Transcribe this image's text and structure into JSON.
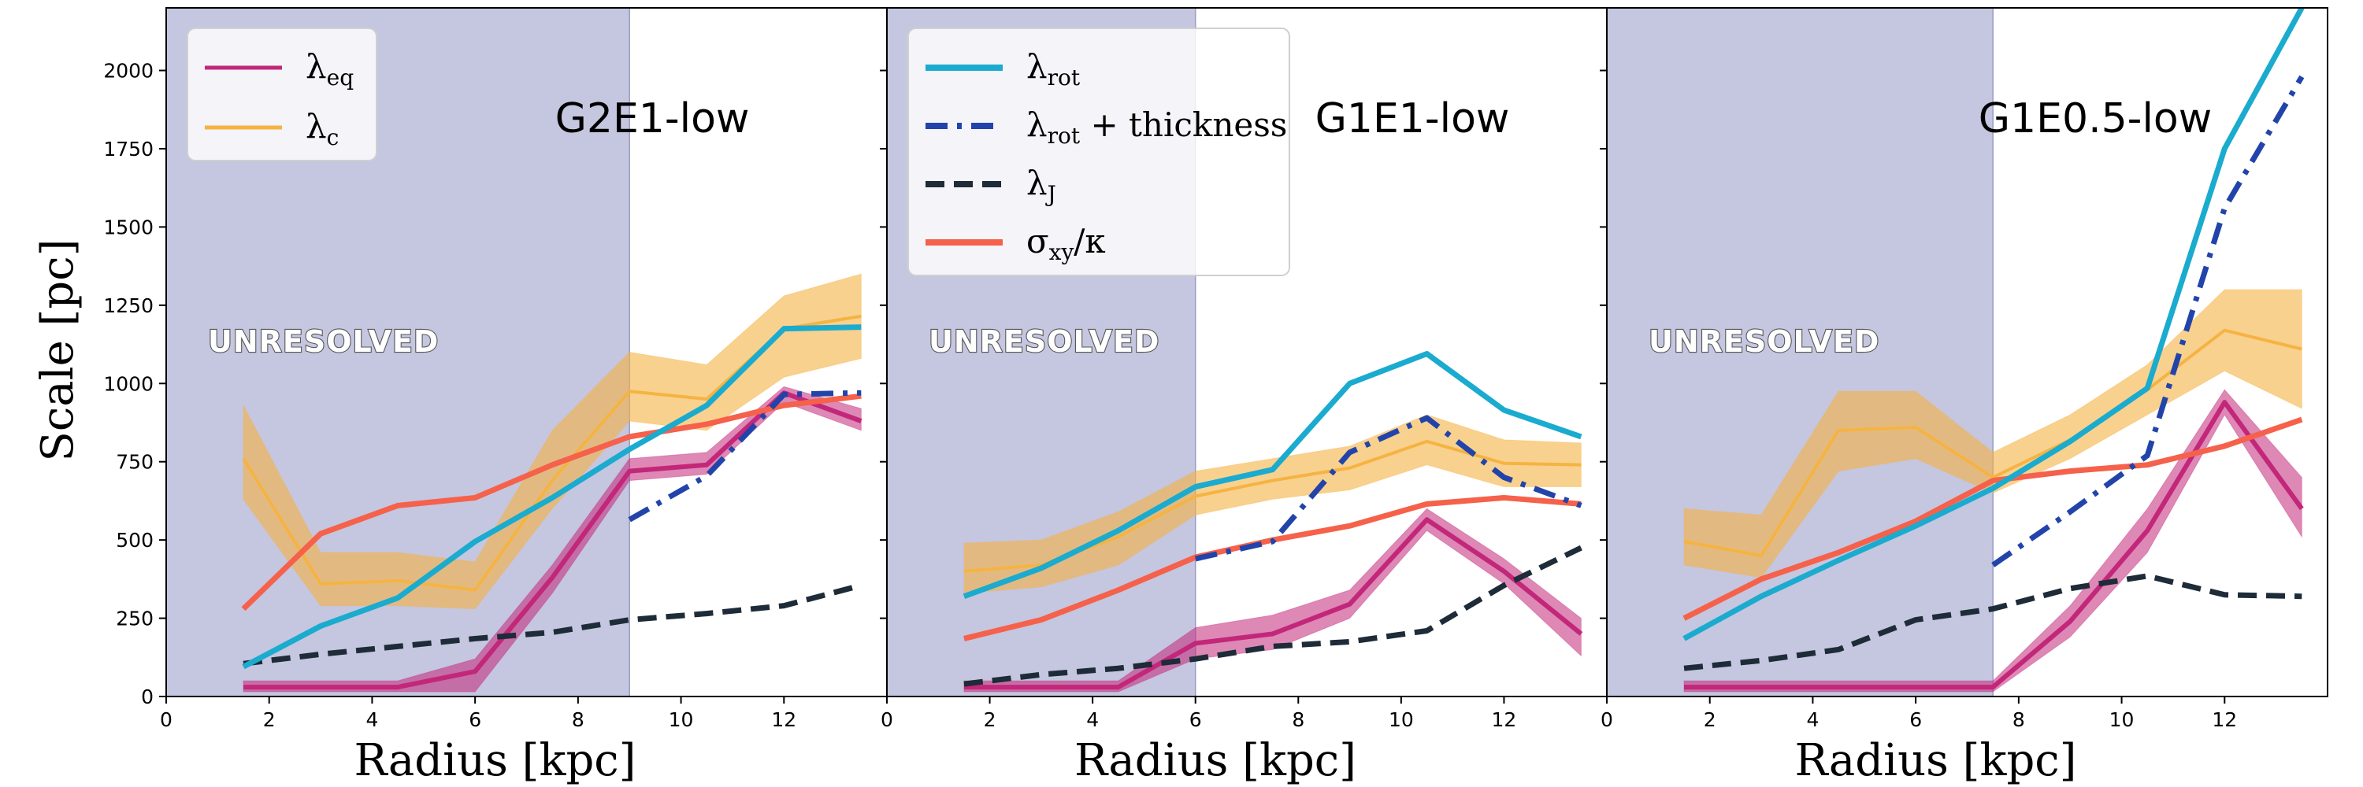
{
  "colors": {
    "unresolved_shade": "#c5c6df",
    "lambda_eq": "#c2277a",
    "lambda_c": "#f5b342",
    "lambda_rot": "#1aabcf",
    "lambda_rot_thickness": "#2244aa",
    "lambda_J": "#1e2b38",
    "sigma_kappa": "#f5614a"
  },
  "y_axis_label": "Scale   [pc]",
  "legends": {
    "left": [
      {
        "symbol": "λ",
        "sub": "eq",
        "suffix": "",
        "series": "lambda_eq"
      },
      {
        "symbol": "λ",
        "sub": "c",
        "suffix": "",
        "series": "lambda_c"
      }
    ],
    "middle": [
      {
        "symbol": "λ",
        "sub": "rot",
        "suffix": "",
        "series": "lambda_rot"
      },
      {
        "symbol": "λ",
        "sub": "rot",
        "suffix": " + thickness",
        "series": "lambda_rot_thickness"
      },
      {
        "symbol": "λ",
        "sub": "J",
        "suffix": "",
        "series": "lambda_J"
      },
      {
        "symbol": "σ",
        "sub": "xy",
        "suffix": "/κ",
        "series": "sigma_kappa"
      }
    ]
  },
  "chart_data": [
    {
      "type": "line",
      "title": "G2E1-low",
      "xlabel": "Radius   [kpc]",
      "ylabel": "Scale   [pc]",
      "annotation": "UNRESOLVED",
      "unresolved_range": [
        0,
        9
      ],
      "xlim": [
        0,
        14
      ],
      "ylim": [
        0,
        2200
      ],
      "xticks": [
        0,
        2,
        4,
        6,
        8,
        10,
        12
      ],
      "yticks": [
        0,
        250,
        500,
        750,
        1000,
        1250,
        1500,
        1750,
        2000
      ],
      "x": [
        1.5,
        3,
        4.5,
        6,
        7.5,
        9,
        10.5,
        12,
        13.5
      ],
      "series": [
        {
          "name": "lambda_c",
          "values": [
            760,
            360,
            370,
            340,
            690,
            975,
            950,
            1175,
            1215
          ],
          "lower": [
            630,
            290,
            290,
            280,
            600,
            880,
            850,
            1020,
            1080
          ],
          "upper": [
            930,
            460,
            460,
            430,
            850,
            1100,
            1060,
            1280,
            1350
          ]
        },
        {
          "name": "lambda_eq",
          "values": [
            30,
            30,
            30,
            80,
            380,
            720,
            740,
            970,
            880
          ],
          "lower": [
            15,
            15,
            15,
            15,
            330,
            690,
            710,
            940,
            850
          ],
          "upper": [
            50,
            50,
            50,
            120,
            420,
            760,
            780,
            990,
            920
          ]
        },
        {
          "name": "lambda_rot",
          "values": [
            95,
            225,
            315,
            495,
            635,
            790,
            930,
            1175,
            1180
          ]
        },
        {
          "name": "lambda_rot_thickness",
          "x": [
            9,
            10.5,
            12,
            13.5
          ],
          "values": [
            565,
            705,
            965,
            970
          ]
        },
        {
          "name": "lambda_J",
          "values": [
            105,
            135,
            160,
            185,
            205,
            245,
            265,
            290,
            355
          ]
        },
        {
          "name": "sigma_kappa",
          "values": [
            280,
            520,
            610,
            635,
            740,
            830,
            870,
            930,
            960
          ]
        }
      ]
    },
    {
      "type": "line",
      "title": "G1E1-low",
      "xlabel": "Radius   [kpc]",
      "annotation": "UNRESOLVED",
      "unresolved_range": [
        0,
        6
      ],
      "xlim": [
        0,
        14
      ],
      "ylim": [
        0,
        2200
      ],
      "xticks": [
        0,
        2,
        4,
        6,
        8,
        10,
        12
      ],
      "yticks": [
        0,
        250,
        500,
        750,
        1000,
        1250,
        1500,
        1750,
        2000
      ],
      "x": [
        1.5,
        3,
        4.5,
        6,
        7.5,
        9,
        10.5,
        12,
        13.5
      ],
      "series": [
        {
          "name": "lambda_c",
          "values": [
            400,
            420,
            510,
            640,
            690,
            730,
            815,
            745,
            740
          ],
          "lower": [
            330,
            350,
            420,
            580,
            630,
            660,
            740,
            670,
            670
          ],
          "upper": [
            490,
            500,
            590,
            720,
            760,
            800,
            900,
            820,
            810
          ]
        },
        {
          "name": "lambda_eq",
          "values": [
            30,
            30,
            30,
            170,
            200,
            295,
            565,
            400,
            200
          ],
          "lower": [
            15,
            15,
            15,
            120,
            150,
            250,
            530,
            360,
            130
          ],
          "upper": [
            50,
            50,
            50,
            220,
            260,
            340,
            600,
            440,
            250
          ]
        },
        {
          "name": "lambda_rot",
          "values": [
            320,
            410,
            530,
            670,
            725,
            1000,
            1095,
            915,
            830
          ]
        },
        {
          "name": "lambda_rot_thickness",
          "x": [
            6,
            7.5,
            9,
            10.5,
            12,
            13.5
          ],
          "values": [
            440,
            495,
            780,
            890,
            700,
            610
          ]
        },
        {
          "name": "lambda_J",
          "values": [
            40,
            70,
            90,
            120,
            160,
            175,
            210,
            355,
            475
          ]
        },
        {
          "name": "sigma_kappa",
          "values": [
            185,
            245,
            340,
            445,
            500,
            545,
            615,
            635,
            615
          ]
        }
      ]
    },
    {
      "type": "line",
      "title": "G1E0.5-low",
      "xlabel": "Radius   [kpc]",
      "annotation": "UNRESOLVED",
      "unresolved_range": [
        0,
        7.5
      ],
      "xlim": [
        0,
        14
      ],
      "ylim": [
        0,
        2200
      ],
      "xticks": [
        0,
        2,
        4,
        6,
        8,
        10,
        12
      ],
      "yticks": [
        0,
        250,
        500,
        750,
        1000,
        1250,
        1500,
        1750,
        2000
      ],
      "x": [
        1.5,
        3,
        4.5,
        6,
        7.5,
        9,
        10.5,
        12,
        13.5
      ],
      "series": [
        {
          "name": "lambda_c",
          "values": [
            495,
            450,
            850,
            860,
            700,
            820,
            980,
            1170,
            1110
          ],
          "lower": [
            420,
            380,
            720,
            760,
            650,
            760,
            900,
            1040,
            920
          ],
          "upper": [
            600,
            580,
            975,
            975,
            780,
            900,
            1060,
            1300,
            1300
          ]
        },
        {
          "name": "lambda_eq",
          "values": [
            30,
            30,
            30,
            30,
            30,
            240,
            530,
            940,
            600
          ],
          "lower": [
            15,
            15,
            15,
            15,
            15,
            190,
            460,
            900,
            510
          ],
          "upper": [
            50,
            50,
            50,
            50,
            50,
            290,
            600,
            980,
            700
          ]
        },
        {
          "name": "lambda_rot",
          "values": [
            185,
            320,
            435,
            545,
            665,
            815,
            985,
            1750,
            2200
          ]
        },
        {
          "name": "lambda_rot_thickness",
          "x": [
            7.5,
            9,
            10.5,
            12,
            13.5
          ],
          "values": [
            420,
            590,
            770,
            1560,
            1980
          ]
        },
        {
          "name": "lambda_J",
          "values": [
            90,
            115,
            150,
            245,
            280,
            345,
            385,
            325,
            320
          ]
        },
        {
          "name": "sigma_kappa",
          "values": [
            250,
            375,
            460,
            560,
            690,
            720,
            740,
            800,
            885
          ]
        }
      ]
    }
  ]
}
